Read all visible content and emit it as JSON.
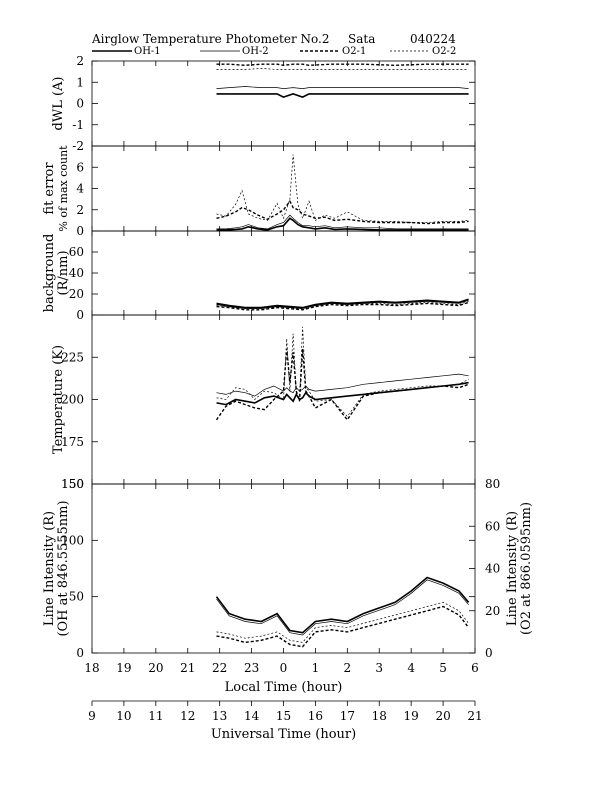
{
  "header": {
    "title": "Airglow Temperature Photometer No.2",
    "site": "Sata",
    "date": "040224"
  },
  "legend": [
    {
      "name": "OH-1",
      "style": "solid-thick"
    },
    {
      "name": "OH-2",
      "style": "solid-thin"
    },
    {
      "name": "O2-1",
      "style": "dashed-thick"
    },
    {
      "name": "O2-2",
      "style": "dashed-thin"
    }
  ],
  "chart_data": [
    {
      "type": "line",
      "ylabel": "dWL (A)",
      "ylim": [
        -2,
        2
      ],
      "yticks": [
        2,
        1,
        0,
        -1,
        -2
      ],
      "x": [
        12.9,
        13.3,
        13.8,
        14.3,
        14.8,
        15.0,
        15.3,
        15.6,
        15.8,
        16.5,
        17.5,
        18.5,
        19.5,
        20.5,
        20.8
      ],
      "series": [
        {
          "name": "OH-1",
          "values": [
            0.45,
            0.45,
            0.45,
            0.45,
            0.45,
            0.3,
            0.45,
            0.3,
            0.45,
            0.45,
            0.45,
            0.45,
            0.45,
            0.45,
            0.45
          ]
        },
        {
          "name": "OH-2",
          "values": [
            0.7,
            0.75,
            0.8,
            0.75,
            0.75,
            0.7,
            0.75,
            0.7,
            0.75,
            0.75,
            0.75,
            0.75,
            0.75,
            0.75,
            0.7
          ]
        },
        {
          "name": "O2-1",
          "values": [
            1.85,
            1.85,
            1.8,
            1.85,
            1.85,
            1.8,
            1.85,
            1.85,
            1.8,
            1.85,
            1.85,
            1.8,
            1.85,
            1.85,
            1.85
          ]
        },
        {
          "name": "O2-2",
          "values": [
            1.6,
            1.6,
            1.6,
            1.65,
            1.6,
            1.6,
            1.6,
            1.6,
            1.6,
            1.6,
            1.6,
            1.6,
            1.6,
            1.6,
            1.6
          ]
        }
      ]
    },
    {
      "type": "line",
      "ylabel": "fit error",
      "ylabel2": "% of max count",
      "ylim": [
        0,
        8
      ],
      "yticks": [
        6,
        4,
        2,
        0
      ],
      "x": [
        12.9,
        13.2,
        13.5,
        13.7,
        13.9,
        14.2,
        14.5,
        14.8,
        15.0,
        15.2,
        15.3,
        15.45,
        15.6,
        15.8,
        16.0,
        16.3,
        16.6,
        17.0,
        17.5,
        18.0,
        18.5,
        19.0,
        19.5,
        20.0,
        20.5,
        20.8
      ],
      "series": [
        {
          "name": "OH-1",
          "values": [
            0.1,
            0.1,
            0.15,
            0.2,
            0.4,
            0.2,
            0.1,
            0.4,
            0.5,
            1.2,
            1.0,
            0.6,
            0.4,
            0.3,
            0.2,
            0.3,
            0.15,
            0.2,
            0.15,
            0.1,
            0.1,
            0.1,
            0.1,
            0.1,
            0.1,
            0.1
          ]
        },
        {
          "name": "OH-2",
          "values": [
            0.2,
            0.2,
            0.3,
            0.4,
            0.6,
            0.3,
            0.2,
            0.6,
            0.8,
            1.5,
            1.2,
            0.8,
            0.5,
            0.5,
            0.4,
            0.5,
            0.3,
            0.4,
            0.3,
            0.3,
            0.2,
            0.2,
            0.2,
            0.2,
            0.2,
            0.2
          ]
        },
        {
          "name": "O2-1",
          "values": [
            1.2,
            1.4,
            1.8,
            2.2,
            2.0,
            1.5,
            1.1,
            1.6,
            2.0,
            2.8,
            2.2,
            2.0,
            1.6,
            1.4,
            1.2,
            1.3,
            1.0,
            1.1,
            0.9,
            0.8,
            0.8,
            0.8,
            0.7,
            0.8,
            0.8,
            0.9
          ]
        },
        {
          "name": "O2-2",
          "values": [
            1.6,
            1.4,
            2.5,
            3.8,
            1.6,
            1.2,
            1.0,
            2.6,
            1.2,
            3.0,
            7.2,
            2.5,
            1.2,
            2.8,
            1.0,
            1.5,
            1.2,
            1.8,
            1.0,
            0.9,
            0.9,
            0.8,
            0.8,
            0.9,
            0.9,
            1.0
          ]
        }
      ]
    },
    {
      "type": "line",
      "ylabel": "background",
      "ylabel2": "(R/nm)",
      "ylim": [
        0,
        80
      ],
      "yticks": [
        60,
        40,
        20,
        0
      ],
      "x": [
        12.9,
        13.3,
        13.8,
        14.3,
        14.8,
        15.2,
        15.6,
        16.0,
        16.5,
        17.0,
        17.5,
        18.0,
        18.5,
        19.0,
        19.5,
        20.0,
        20.5,
        20.8
      ],
      "series": [
        {
          "name": "OH-1",
          "values": [
            11,
            9,
            7,
            7,
            9,
            8,
            7,
            10,
            12,
            11,
            12,
            13,
            12,
            13,
            14,
            13,
            12,
            15
          ]
        },
        {
          "name": "OH-2",
          "values": [
            10,
            8,
            6,
            6,
            8,
            7,
            6,
            9,
            11,
            10,
            11,
            12,
            11,
            12,
            13,
            12,
            11,
            14
          ]
        },
        {
          "name": "O2-1",
          "values": [
            8,
            7,
            5,
            5,
            7,
            6,
            5,
            8,
            10,
            9,
            10,
            10,
            9,
            10,
            11,
            10,
            9,
            12
          ]
        },
        {
          "name": "O2-2",
          "values": [
            9,
            8,
            6,
            6,
            8,
            7,
            6,
            9,
            11,
            10,
            11,
            11,
            10,
            11,
            12,
            11,
            10,
            13
          ]
        }
      ]
    },
    {
      "type": "line",
      "ylabel": "Temperature (K)",
      "ylim": [
        150,
        250
      ],
      "yticks": [
        225,
        200,
        175,
        150
      ],
      "x": [
        12.9,
        13.2,
        13.5,
        13.8,
        14.1,
        14.4,
        14.7,
        15.0,
        15.1,
        15.2,
        15.3,
        15.4,
        15.5,
        15.6,
        15.7,
        15.8,
        16.0,
        16.5,
        17.0,
        17.5,
        18.0,
        18.5,
        19.0,
        19.5,
        20.0,
        20.5,
        20.8
      ],
      "series": [
        {
          "name": "OH-1",
          "values": [
            198,
            197,
            200,
            199,
            198,
            201,
            202,
            200,
            203,
            201,
            199,
            203,
            200,
            201,
            204,
            202,
            200,
            201,
            202,
            203,
            204,
            205,
            206,
            207,
            208,
            209,
            210
          ]
        },
        {
          "name": "OH-2",
          "values": [
            204,
            203,
            205,
            204,
            202,
            206,
            208,
            205,
            207,
            205,
            204,
            207,
            205,
            206,
            208,
            206,
            205,
            206,
            207,
            209,
            210,
            211,
            212,
            213,
            214,
            215,
            214
          ]
        },
        {
          "name": "O2-1",
          "values": [
            188,
            196,
            199,
            197,
            195,
            194,
            200,
            205,
            230,
            210,
            228,
            205,
            199,
            230,
            205,
            202,
            195,
            200,
            188,
            202,
            204,
            205,
            206,
            207,
            208,
            207,
            209
          ]
        },
        {
          "name": "O2-2",
          "values": [
            201,
            200,
            207,
            206,
            200,
            205,
            204,
            200,
            236,
            205,
            239,
            204,
            200,
            243,
            207,
            205,
            199,
            200,
            190,
            203,
            205,
            206,
            207,
            208,
            208,
            209,
            212
          ]
        }
      ]
    },
    {
      "type": "line",
      "ylabel": "Line Intensity (R)",
      "ylabel2": "(OH at 846.5555nm)",
      "ylabel_right": "Line Intensity (R)",
      "ylabel_right2": "(O2 at 866.0595nm)",
      "ylim": [
        0,
        150
      ],
      "yticks": [
        150,
        100,
        50,
        0
      ],
      "ylim_right": [
        0,
        80
      ],
      "yticks_right": [
        80,
        60,
        40,
        20,
        0
      ],
      "x": [
        12.9,
        13.3,
        13.8,
        14.3,
        14.8,
        15.2,
        15.6,
        16.0,
        16.5,
        17.0,
        17.5,
        18.0,
        18.5,
        19.0,
        19.5,
        20.0,
        20.5,
        20.8
      ],
      "series": [
        {
          "name": "OH-1",
          "values": [
            50,
            35,
            30,
            28,
            35,
            20,
            18,
            28,
            30,
            28,
            35,
            40,
            45,
            55,
            67,
            62,
            55,
            45
          ]
        },
        {
          "name": "OH-2",
          "values": [
            48,
            33,
            28,
            26,
            33,
            18,
            16,
            26,
            28,
            26,
            33,
            38,
            43,
            53,
            65,
            60,
            53,
            43
          ]
        },
        {
          "name": "O2-1",
          "values": [
            8,
            7,
            5,
            6,
            8,
            4,
            3,
            10,
            11,
            10,
            12,
            14,
            16,
            18,
            20,
            22,
            18,
            12
          ]
        },
        {
          "name": "O2-2",
          "values": [
            10,
            9,
            7,
            8,
            10,
            6,
            5,
            12,
            13,
            12,
            14,
            16,
            18,
            20,
            22,
            24,
            20,
            14
          ]
        }
      ]
    }
  ],
  "xaxis": {
    "local": {
      "title": "Local Time (hour)",
      "ticks": [
        "18",
        "19",
        "20",
        "21",
        "22",
        "23",
        "0",
        "1",
        "2",
        "3",
        "4",
        "5",
        "6"
      ]
    },
    "ut": {
      "title": "Universal Time (hour)",
      "ticks": [
        "9",
        "10",
        "11",
        "12",
        "13",
        "14",
        "15",
        "16",
        "17",
        "18",
        "19",
        "20",
        "21"
      ]
    },
    "ut_range": [
      9,
      21
    ]
  }
}
